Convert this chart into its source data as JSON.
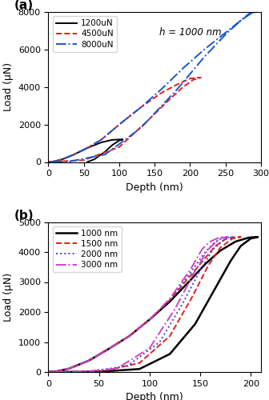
{
  "panel_a": {
    "annotation": "h = 1000 nm",
    "xlabel": "Depth (nm)",
    "ylabel": "Load (μN)",
    "xlim": [
      0,
      300
    ],
    "ylim": [
      0,
      8000
    ],
    "xticks": [
      0,
      50,
      100,
      150,
      200,
      250,
      300
    ],
    "yticks": [
      0,
      2000,
      4000,
      6000,
      8000
    ],
    "curves": [
      {
        "label": "1200uN",
        "color": "black",
        "linestyle": "solid",
        "lw": 1.4,
        "segments": [
          {
            "type": "load",
            "d": [
              0,
              5,
              10,
              20,
              35,
              55,
              75,
              90,
              100
            ],
            "p": [
              0,
              15,
              50,
              150,
              380,
              750,
              1050,
              1180,
              1200
            ]
          },
          {
            "type": "hold",
            "d": [
              100,
              105
            ],
            "p": [
              1200,
              1200
            ]
          },
          {
            "type": "unload",
            "d": [
              105,
              100,
              90,
              80,
              65,
              55
            ],
            "p": [
              1200,
              1150,
              900,
              550,
              150,
              0
            ]
          }
        ]
      },
      {
        "label": "4500uN",
        "color": "#e02020",
        "linestyle": "dashed",
        "lw": 1.4,
        "segments": [
          {
            "type": "load",
            "d": [
              0,
              5,
              10,
              20,
              35,
              55,
              75,
              100,
              130,
              160,
              185,
              200,
              210
            ],
            "p": [
              0,
              15,
              50,
              150,
              380,
              750,
              1200,
              2000,
              2900,
              3700,
              4200,
              4450,
              4500
            ]
          },
          {
            "type": "hold",
            "d": [
              210,
              215
            ],
            "p": [
              4500,
              4500
            ]
          },
          {
            "type": "unload",
            "d": [
              215,
              205,
              190,
              170,
              140,
              100,
              50,
              0
            ],
            "p": [
              4500,
              4400,
              4000,
              3300,
              2200,
              800,
              100,
              0
            ]
          }
        ]
      },
      {
        "label": "8000uN",
        "color": "#1a55cc",
        "linestyle": "dashdot",
        "lw": 1.4,
        "segments": [
          {
            "type": "load",
            "d": [
              0,
              5,
              10,
              20,
              35,
              55,
              75,
              100,
              130,
              160,
              190,
              220,
              250,
              270,
              283,
              290
            ],
            "p": [
              0,
              15,
              50,
              150,
              380,
              750,
              1200,
              2000,
              2900,
              3900,
              5000,
              6000,
              6900,
              7500,
              7900,
              8000
            ]
          },
          {
            "type": "hold",
            "d": [
              290,
              293
            ],
            "p": [
              8000,
              8000
            ]
          },
          {
            "type": "unload",
            "d": [
              293,
              285,
              270,
              250,
              220,
              180,
              130,
              80,
              30,
              0
            ],
            "p": [
              8000,
              7900,
              7500,
              6800,
              5600,
              3800,
              1800,
              400,
              30,
              0
            ]
          }
        ]
      }
    ]
  },
  "panel_b": {
    "xlabel": "Depth (nm)",
    "ylabel": "Load (μN)",
    "xlim": [
      0,
      210
    ],
    "ylim": [
      0,
      5000
    ],
    "xticks": [
      0,
      50,
      100,
      150,
      200
    ],
    "yticks": [
      0,
      1000,
      2000,
      3000,
      4000,
      5000
    ],
    "curves": [
      {
        "label": "1000 nm",
        "color": "black",
        "linestyle": "solid",
        "lw": 1.8,
        "segments": [
          {
            "type": "load",
            "d": [
              0,
              5,
              10,
              20,
              40,
              60,
              80,
              100,
              120,
              140,
              155,
              170,
              185,
              198,
              205
            ],
            "p": [
              0,
              10,
              35,
              110,
              380,
              780,
              1200,
              1750,
              2350,
              3050,
              3600,
              4050,
              4350,
              4480,
              4500
            ]
          },
          {
            "type": "hold",
            "d": [
              205,
              207
            ],
            "p": [
              4500,
              4500
            ]
          },
          {
            "type": "unload",
            "d": [
              207,
              200,
              190,
              180,
              165,
              145,
              120,
              90,
              50,
              0
            ],
            "p": [
              4500,
              4450,
              4200,
              3700,
              2800,
              1600,
              600,
              100,
              10,
              0
            ]
          }
        ]
      },
      {
        "label": "1500 nm",
        "color": "#e02020",
        "linestyle": "dashed",
        "lw": 1.4,
        "segments": [
          {
            "type": "load",
            "d": [
              0,
              5,
              10,
              20,
              40,
              60,
              80,
              100,
              120,
              140,
              155,
              165,
              175,
              183,
              188
            ],
            "p": [
              0,
              10,
              35,
              110,
              380,
              780,
              1200,
              1750,
              2400,
              3200,
              3800,
              4200,
              4430,
              4490,
              4500
            ]
          },
          {
            "type": "hold",
            "d": [
              188,
              190
            ],
            "p": [
              4500,
              4500
            ]
          },
          {
            "type": "unload",
            "d": [
              190,
              182,
              170,
              158,
              142,
              120,
              90,
              55,
              20,
              0
            ],
            "p": [
              4500,
              4450,
              4150,
              3550,
              2500,
              1200,
              300,
              40,
              5,
              0
            ]
          }
        ]
      },
      {
        "label": "2000 nm",
        "color": "#4444cc",
        "linestyle": "dotted",
        "lw": 1.4,
        "segments": [
          {
            "type": "load",
            "d": [
              0,
              5,
              10,
              20,
              40,
              60,
              80,
              100,
              120,
              140,
              155,
              163,
              170,
              177,
              181
            ],
            "p": [
              0,
              10,
              35,
              110,
              380,
              780,
              1200,
              1750,
              2400,
              3300,
              4000,
              4280,
              4430,
              4490,
              4500
            ]
          },
          {
            "type": "hold",
            "d": [
              181,
              183
            ],
            "p": [
              4500,
              4500
            ]
          },
          {
            "type": "unload",
            "d": [
              183,
              175,
              163,
              150,
              133,
              110,
              78,
              42,
              12,
              0
            ],
            "p": [
              4500,
              4450,
              4100,
              3400,
              2300,
              1000,
              200,
              25,
              2,
              0
            ]
          }
        ]
      },
      {
        "label": "3000 nm",
        "color": "#cc44cc",
        "linestyle": "dashdot",
        "lw": 1.4,
        "segments": [
          {
            "type": "load",
            "d": [
              0,
              5,
              10,
              20,
              40,
              60,
              80,
              100,
              120,
              140,
              152,
              160,
              167,
              172,
              175
            ],
            "p": [
              0,
              10,
              35,
              110,
              380,
              780,
              1200,
              1750,
              2450,
              3400,
              4100,
              4350,
              4460,
              4495,
              4500
            ]
          },
          {
            "type": "hold",
            "d": [
              175,
              177
            ],
            "p": [
              4500,
              4500
            ]
          },
          {
            "type": "unload",
            "d": [
              177,
              169,
              157,
              143,
              125,
              100,
              68,
              35,
              8,
              0
            ],
            "p": [
              4500,
              4450,
              4050,
              3250,
              2100,
              800,
              120,
              15,
              1,
              0
            ]
          }
        ]
      }
    ]
  }
}
